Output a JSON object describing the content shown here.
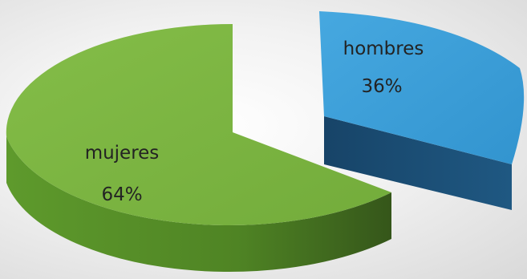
{
  "chart_data": {
    "type": "pie",
    "style": "3d-exploded",
    "title": "",
    "slices": [
      {
        "label": "hombres",
        "value": 36,
        "value_label": "36%",
        "color": "#3d9fd9",
        "side_color": "#1a4a70"
      },
      {
        "label": "mujeres",
        "value": 64,
        "value_label": "64%",
        "color": "#7cb342",
        "side_color": "#4a7a22"
      }
    ]
  }
}
